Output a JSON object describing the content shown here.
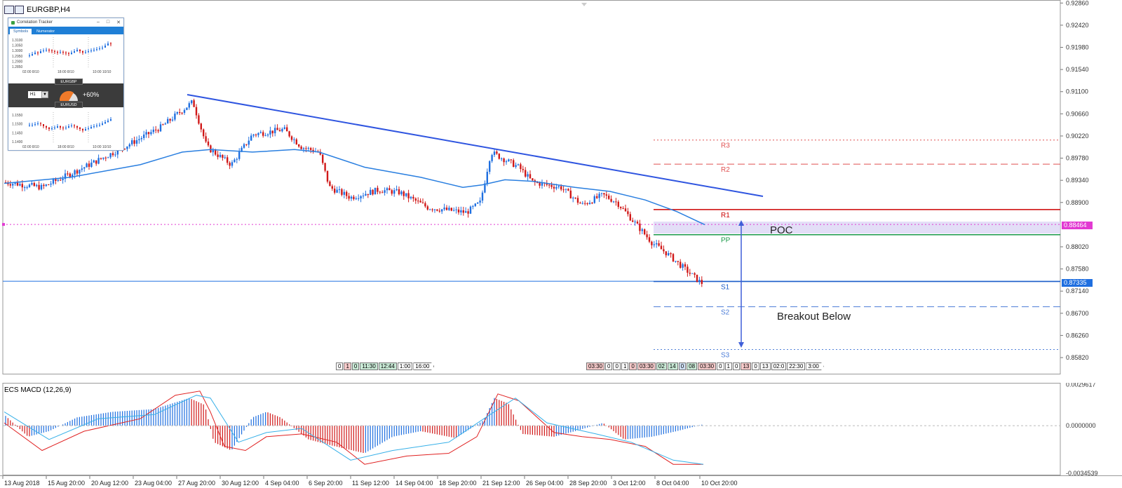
{
  "window": {
    "symbol_timeframe": "EURGBP,H4"
  },
  "chart_data": {
    "type": "candlestick",
    "price_axis": {
      "ticks": [
        "0.92860",
        "0.92420",
        "0.91980",
        "0.91540",
        "0.91100",
        "0.90660",
        "0.90220",
        "0.89780",
        "0.89340",
        "0.88900",
        "0.88020",
        "0.87580",
        "0.87140",
        "0.86700",
        "0.86260",
        "0.85820"
      ],
      "range": [
        0.855,
        0.9292
      ]
    },
    "date_axis": [
      "13 Aug 2018",
      "15 Aug 20:00",
      "20 Aug 12:00",
      "23 Aug 04:00",
      "27 Aug 20:00",
      "30 Aug 12:00",
      "4 Sep 04:00",
      "6 Sep 20:00",
      "11 Sep 12:00",
      "14 Sep 04:00",
      "18 Sep 20:00",
      "21 Sep 12:00",
      "26 Sep 04:00",
      "28 Sep 20:00",
      "3 Oct 12:00",
      "8 Oct 04:00",
      "10 Oct 20:00"
    ],
    "current_price": "0.87335",
    "poc_price": "0.88464",
    "pivot_levels": [
      {
        "name": "R3",
        "price": 0.9014,
        "style": "dotted",
        "color": "#e05050"
      },
      {
        "name": "R2",
        "price": 0.8966,
        "style": "dashed",
        "color": "#e05050"
      },
      {
        "name": "R1",
        "price": 0.8876,
        "style": "solid",
        "color": "#cc0000"
      },
      {
        "name": "PP",
        "price": 0.8826,
        "style": "solid",
        "color": "#1a9a4a"
      },
      {
        "name": "S1",
        "price": 0.8733,
        "style": "solid",
        "color": "#1f5fc8"
      },
      {
        "name": "S2",
        "price": 0.8683,
        "style": "dashed",
        "color": "#4f7fd8"
      },
      {
        "name": "S3",
        "price": 0.8598,
        "style": "dotted",
        "color": "#4f7fd8"
      }
    ],
    "annotations": {
      "poc_label": "POC",
      "breakout_label": "Breakout Below"
    },
    "colors": {
      "bull": "#1f6fe0",
      "bear": "#d01818",
      "ma": "#2a7fe0",
      "trendline": "#2f55e0",
      "poc_zone": "#dcd6f5"
    }
  },
  "macd": {
    "title": "ECS MACD (12,26,9)",
    "axis_ticks": [
      "0.0029617",
      "0.0000000",
      "-0.0034539"
    ],
    "range": [
      -0.0036,
      0.0031
    ]
  },
  "tick_tags": {
    "left": [
      {
        "t": "0",
        "c": ""
      },
      {
        "t": "1",
        "c": "red"
      },
      {
        "t": "0",
        "c": "green"
      },
      {
        "t": "11:30",
        "c": "green"
      },
      {
        "t": "12:44",
        "c": "green"
      },
      {
        "t": "1:00",
        "c": ""
      },
      {
        "t": "16:00",
        "c": "arrow"
      }
    ],
    "right": [
      {
        "t": "03:30",
        "c": "red"
      },
      {
        "t": "0",
        "c": ""
      },
      {
        "t": "0",
        "c": ""
      },
      {
        "t": "1",
        "c": ""
      },
      {
        "t": "0",
        "c": "red"
      },
      {
        "t": "03:30",
        "c": "red"
      },
      {
        "t": "02",
        "c": "green"
      },
      {
        "t": "14",
        "c": "green"
      },
      {
        "t": "0",
        "c": "blue"
      },
      {
        "t": "08",
        "c": "green"
      },
      {
        "t": "03:30",
        "c": "red"
      },
      {
        "t": "0",
        "c": ""
      },
      {
        "t": "1",
        "c": ""
      },
      {
        "t": "0",
        "c": ""
      },
      {
        "t": "13",
        "c": "red"
      },
      {
        "t": "0",
        "c": ""
      },
      {
        "t": "13",
        "c": ""
      },
      {
        "t": "02:0",
        "c": ""
      },
      {
        "t": "22:30",
        "c": ""
      },
      {
        "t": "3:00",
        "c": "arrow"
      }
    ]
  },
  "widget": {
    "title": "Correlation Tracker",
    "tabs": [
      "Symbols",
      "Numerator"
    ],
    "pair_top": "EURGBP",
    "pair_bottom": "EURUSD",
    "timeframe": "H1",
    "correlation": "+60%",
    "mini_top": {
      "ticks": [
        "1.3100",
        "1.3050",
        "1.3000",
        "1.2950",
        "1.2900",
        "1.2850"
      ],
      "dates": [
        "02:00 8/10",
        "18:00 8/10",
        "10:00 10/10"
      ]
    },
    "mini_bottom": {
      "ticks": [
        "1.1550",
        "1.1500",
        "1.1450",
        "1.1400"
      ],
      "dates": [
        "02:00 8/10",
        "18:00 8/10",
        "10:00 10/10"
      ]
    }
  }
}
